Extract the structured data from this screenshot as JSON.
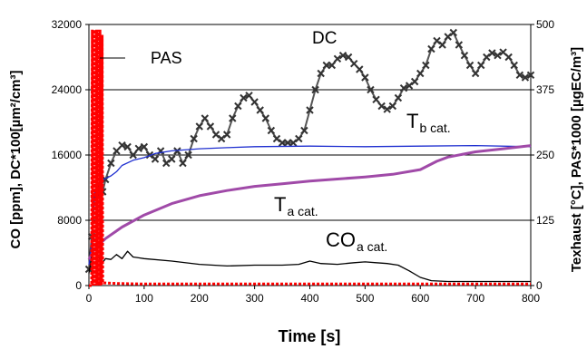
{
  "chart_data": {
    "type": "line",
    "xlabel": "Time [s]",
    "ylabel_left": "CO [ppm], DC*100[µm²/cm³]",
    "ylabel_right": "Texhaust [°C], PAS*1000 [µgEC/m³]",
    "xlim": [
      0,
      800
    ],
    "ylim_left": [
      0,
      32000
    ],
    "ylim_right": [
      0,
      500
    ],
    "x_ticks": [
      0,
      100,
      200,
      300,
      400,
      500,
      600,
      700,
      800
    ],
    "left_ticks": [
      0,
      8000,
      16000,
      24000,
      32000
    ],
    "right_ticks": [
      0,
      125,
      250,
      375,
      500
    ],
    "grid": "horizontal",
    "legend": {
      "label": "PAS",
      "position": "top-left"
    },
    "annotations": {
      "dc": "DC",
      "tb_main": "T",
      "tb_sub": "b cat.",
      "ta_main": "T",
      "ta_sub": "a cat.",
      "co_main": "CO",
      "co_sub": "a cat."
    },
    "series": [
      {
        "name": "DC",
        "axis": "left",
        "color": "#555555",
        "marker": "x",
        "x": [
          0,
          5,
          10,
          15,
          20,
          25,
          30,
          40,
          50,
          60,
          70,
          80,
          90,
          100,
          110,
          120,
          130,
          140,
          150,
          160,
          170,
          180,
          190,
          200,
          210,
          220,
          230,
          240,
          250,
          260,
          270,
          280,
          290,
          300,
          310,
          320,
          330,
          340,
          350,
          360,
          370,
          380,
          390,
          400,
          410,
          420,
          430,
          440,
          450,
          460,
          470,
          480,
          490,
          500,
          510,
          520,
          530,
          540,
          550,
          560,
          570,
          580,
          590,
          600,
          610,
          620,
          630,
          640,
          650,
          660,
          670,
          680,
          690,
          700,
          710,
          720,
          730,
          740,
          750,
          760,
          770,
          780,
          790,
          800
        ],
        "values": [
          2000,
          6000,
          11000,
          12000,
          11000,
          11500,
          13000,
          15000,
          16500,
          17200,
          17000,
          16000,
          16800,
          17000,
          16000,
          15500,
          16500,
          15000,
          15500,
          16500,
          15000,
          16000,
          18000,
          19500,
          20500,
          19500,
          18500,
          18000,
          18500,
          20500,
          22000,
          23000,
          23300,
          22500,
          21500,
          20500,
          19000,
          18000,
          17500,
          17500,
          17500,
          18000,
          19000,
          21500,
          24000,
          26000,
          27000,
          27000,
          27800,
          28200,
          28000,
          27200,
          26500,
          25500,
          24000,
          22800,
          22000,
          21600,
          22000,
          23000,
          24200,
          24500,
          25000,
          26000,
          27000,
          29000,
          30000,
          29500,
          30500,
          31000,
          29500,
          28200,
          27000,
          26000,
          27000,
          28000,
          28500,
          28200,
          28600,
          28000,
          27000,
          25800,
          25500,
          25800
        ]
      },
      {
        "name": "Tb cat.",
        "axis": "right",
        "color": "#1f2fd0",
        "x": [
          0,
          5,
          10,
          15,
          20,
          30,
          40,
          50,
          60,
          80,
          100,
          120,
          150,
          200,
          250,
          300,
          400,
          500,
          600,
          700,
          800
        ],
        "values": [
          40,
          80,
          175,
          195,
          200,
          205,
          210,
          218,
          230,
          240,
          245,
          253,
          258,
          262,
          264,
          266,
          267,
          266,
          267,
          268,
          266
        ]
      },
      {
        "name": "Ta cat.",
        "axis": "right",
        "color": "#a04aa8",
        "x": [
          0,
          10,
          30,
          60,
          100,
          150,
          200,
          250,
          300,
          350,
          400,
          450,
          500,
          550,
          600,
          630,
          650,
          700,
          750,
          800
        ],
        "values": [
          50,
          70,
          90,
          112,
          135,
          157,
          172,
          182,
          190,
          195,
          200,
          204,
          208,
          213,
          222,
          238,
          246,
          256,
          262,
          268
        ]
      },
      {
        "name": "COa cat.",
        "axis": "left",
        "color": "#000000",
        "x": [
          0,
          5,
          10,
          15,
          20,
          25,
          30,
          40,
          50,
          60,
          70,
          80,
          90,
          100,
          150,
          200,
          250,
          300,
          350,
          380,
          400,
          420,
          450,
          480,
          500,
          520,
          540,
          560,
          580,
          600,
          620,
          650,
          700,
          750,
          800
        ],
        "values": [
          1500,
          3500,
          4000,
          3800,
          3200,
          2800,
          3300,
          3200,
          3800,
          3300,
          4200,
          3500,
          3400,
          3300,
          3000,
          2600,
          2400,
          2500,
          2500,
          2600,
          3000,
          2700,
          2600,
          2800,
          2900,
          2800,
          2700,
          2500,
          1800,
          1000,
          600,
          500,
          500,
          500,
          500
        ]
      },
      {
        "name": "PAS",
        "axis": "right",
        "color": "#ff0000",
        "x": [
          0,
          5,
          6,
          7,
          8,
          9,
          10,
          11,
          12,
          13,
          14,
          15,
          16,
          17,
          18,
          19,
          20,
          21,
          22,
          23,
          24,
          25,
          30,
          50,
          100,
          200,
          300,
          400,
          500,
          600,
          700,
          800
        ],
        "values": [
          0,
          0,
          490,
          0,
          490,
          0,
          490,
          0,
          490,
          0,
          490,
          0,
          490,
          0,
          485,
          0,
          490,
          0,
          470,
          0,
          480,
          5,
          5,
          4,
          3,
          3,
          3,
          3,
          3,
          3,
          3,
          3
        ]
      }
    ]
  }
}
